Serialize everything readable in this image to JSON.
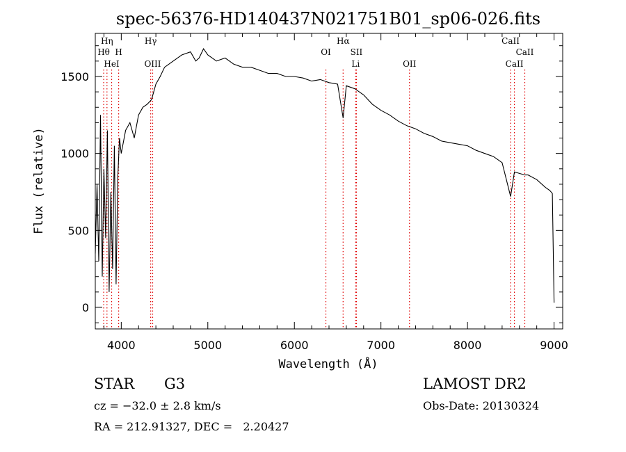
{
  "chart_data": {
    "type": "line",
    "title": "spec-56376-HD140437N021751B01_sp06-026.fits",
    "xlabel": "Wavelength (Å)",
    "ylabel": "Flux (relative)",
    "xlim": [
      3700,
      9100
    ],
    "ylim": [
      -140,
      1780
    ],
    "x_ticks": [
      4000,
      5000,
      6000,
      7000,
      8000,
      9000
    ],
    "y_ticks": [
      0,
      500,
      1000,
      1500
    ],
    "grid": false,
    "series": [
      {
        "x": [
          3700,
          3720,
          3740,
          3760,
          3780,
          3800,
          3820,
          3840,
          3860,
          3880,
          3900,
          3920,
          3940,
          3960,
          3980,
          4000,
          4050,
          4100,
          4150,
          4200,
          4250,
          4300,
          4350,
          4400,
          4450,
          4500,
          4600,
          4700,
          4800,
          4860,
          4900,
          4950,
          5000,
          5100,
          5200,
          5300,
          5400,
          5500,
          5600,
          5700,
          5800,
          5900,
          6000,
          6100,
          6200,
          6300,
          6400,
          6500,
          6563,
          6600,
          6700,
          6800,
          6900,
          7000,
          7100,
          7200,
          7300,
          7400,
          7500,
          7600,
          7700,
          7800,
          7900,
          8000,
          8100,
          8200,
          8300,
          8400,
          8498,
          8542,
          8600,
          8662,
          8700,
          8800,
          8900,
          8950,
          8980,
          9000
        ],
        "y": [
          350,
          800,
          300,
          1250,
          200,
          900,
          450,
          1150,
          100,
          750,
          250,
          1050,
          150,
          850,
          1100,
          1000,
          1150,
          1200,
          1100,
          1250,
          1300,
          1320,
          1350,
          1450,
          1500,
          1560,
          1600,
          1640,
          1660,
          1600,
          1620,
          1680,
          1640,
          1600,
          1620,
          1580,
          1560,
          1560,
          1540,
          1520,
          1520,
          1500,
          1500,
          1490,
          1470,
          1480,
          1460,
          1450,
          1230,
          1440,
          1420,
          1380,
          1320,
          1280,
          1250,
          1210,
          1180,
          1160,
          1130,
          1110,
          1080,
          1070,
          1060,
          1050,
          1020,
          1000,
          980,
          940,
          720,
          880,
          870,
          860,
          860,
          830,
          780,
          760,
          740,
          30
        ]
      }
    ],
    "line_labels": [
      {
        "text": "Hη",
        "wavelength": 3835,
        "row": 1
      },
      {
        "text": "Hθ",
        "wavelength": 3797,
        "row": 2
      },
      {
        "text": "H",
        "wavelength": 3970,
        "row": 2
      },
      {
        "text": "HeI",
        "wavelength": 3889,
        "row": 3
      },
      {
        "text": "Hγ",
        "wavelength": 4340,
        "row": 1
      },
      {
        "text": "OIII",
        "wavelength": 4363,
        "row": 3
      },
      {
        "text": "Hα",
        "wavelength": 6563,
        "row": 1
      },
      {
        "text": "OI",
        "wavelength": 6364,
        "row": 2
      },
      {
        "text": "SII",
        "wavelength": 6717,
        "row": 2
      },
      {
        "text": "Li",
        "wavelength": 6708,
        "row": 3
      },
      {
        "text": "OII",
        "wavelength": 7330,
        "row": 3
      },
      {
        "text": "CaII",
        "wavelength": 8498,
        "row": 1
      },
      {
        "text": "CaII",
        "wavelength": 8662,
        "row": 2
      },
      {
        "text": "CaII",
        "wavelength": 8542,
        "row": 3
      }
    ],
    "line_markers": [
      3797,
      3835,
      3889,
      3970,
      4340,
      4363,
      6364,
      6563,
      6708,
      6717,
      7330,
      8498,
      8542,
      8662
    ],
    "marker_color": "#e00000",
    "line_color": "#000000"
  },
  "info": {
    "object_class": "STAR",
    "subclass": "G3",
    "survey": "LAMOST DR2",
    "redshift": "cz = −32.0 ± 2.8 km/s",
    "obs_date": "Obs-Date: 20130324",
    "coords": "RA = 212.91327, DEC =   2.20427"
  }
}
